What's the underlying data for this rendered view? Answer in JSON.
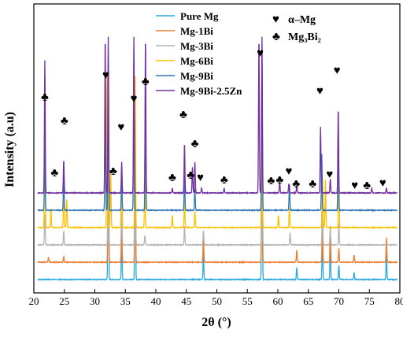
{
  "chart_data": {
    "type": "line",
    "xlabel": "2θ (°)",
    "ylabel": "Intensity (a.u)",
    "xlim": [
      20,
      80
    ],
    "xticks": [
      20,
      25,
      30,
      35,
      40,
      45,
      50,
      55,
      60,
      65,
      70,
      75,
      80
    ],
    "yticks_shown": false,
    "grid": false,
    "legend_position": "top-center",
    "series": [
      {
        "name": "Pure Mg",
        "color": "#29a9e0",
        "offset": 0,
        "peaks": [
          [
            32.2,
            330
          ],
          [
            34.4,
            90
          ],
          [
            36.6,
            330
          ],
          [
            47.8,
            55
          ],
          [
            57.4,
            330
          ],
          [
            63.1,
            25
          ],
          [
            67.3,
            95
          ],
          [
            68.6,
            70
          ],
          [
            70.0,
            30
          ],
          [
            72.5,
            15
          ],
          [
            77.8,
            55
          ]
        ]
      },
      {
        "name": "Mg-1Bi",
        "color": "#ed7d31",
        "offset": 1,
        "peaks": [
          [
            22.4,
            10
          ],
          [
            24.9,
            12
          ],
          [
            32.2,
            330
          ],
          [
            34.4,
            80
          ],
          [
            36.6,
            330
          ],
          [
            47.8,
            55
          ],
          [
            57.4,
            330
          ],
          [
            63.1,
            25
          ],
          [
            67.3,
            90
          ],
          [
            68.6,
            65
          ],
          [
            70.0,
            30
          ],
          [
            72.5,
            15
          ],
          [
            77.8,
            52
          ]
        ]
      },
      {
        "name": "Mg-3Bi",
        "color": "#b4b4b4",
        "offset": 2,
        "peaks": [
          [
            21.8,
            65
          ],
          [
            24.9,
            30
          ],
          [
            32.2,
            330
          ],
          [
            34.4,
            85
          ],
          [
            36.6,
            330
          ],
          [
            38.2,
            20
          ],
          [
            44.7,
            40
          ],
          [
            47.8,
            30
          ],
          [
            57.4,
            330
          ],
          [
            62.0,
            25
          ],
          [
            67.3,
            80
          ],
          [
            68.6,
            40
          ],
          [
            70.0,
            45
          ]
        ]
      },
      {
        "name": "Mg-6Bi",
        "color": "#ffc000",
        "offset": 3,
        "peaks": [
          [
            21.8,
            200
          ],
          [
            22.8,
            40
          ],
          [
            24.9,
            75
          ],
          [
            25.4,
            60
          ],
          [
            32.0,
            320
          ],
          [
            32.6,
            120
          ],
          [
            34.4,
            130
          ],
          [
            36.6,
            320
          ],
          [
            38.2,
            110
          ],
          [
            42.7,
            25
          ],
          [
            44.7,
            60
          ],
          [
            46.4,
            35
          ],
          [
            57.4,
            330
          ],
          [
            60.1,
            25
          ],
          [
            61.9,
            40
          ],
          [
            67.3,
            120
          ],
          [
            67.8,
            100
          ],
          [
            70.0,
            100
          ]
        ]
      },
      {
        "name": "Mg-9Bi",
        "color": "#2e75b6",
        "offset": 4,
        "peaks": [
          [
            21.8,
            150
          ],
          [
            24.9,
            70
          ],
          [
            31.7,
            230
          ],
          [
            32.2,
            300
          ],
          [
            34.4,
            70
          ],
          [
            36.4,
            300
          ],
          [
            38.3,
            200
          ],
          [
            44.7,
            75
          ],
          [
            46.4,
            45
          ],
          [
            57.4,
            320
          ],
          [
            61.9,
            55
          ],
          [
            67.2,
            120
          ],
          [
            69.9,
            160
          ]
        ]
      },
      {
        "name": "Mg-9Bi-2.5Zn",
        "color": "#7030a0",
        "offset": 5,
        "peaks": [
          [
            21.8,
            280
          ],
          [
            24.9,
            70
          ],
          [
            31.7,
            330
          ],
          [
            32.2,
            330
          ],
          [
            34.4,
            65
          ],
          [
            36.4,
            330
          ],
          [
            38.3,
            330
          ],
          [
            42.7,
            10
          ],
          [
            44.7,
            105
          ],
          [
            46.0,
            55
          ],
          [
            46.4,
            65
          ],
          [
            47.5,
            10
          ],
          [
            51.2,
            10
          ],
          [
            56.9,
            330
          ],
          [
            57.4,
            330
          ],
          [
            60.3,
            25
          ],
          [
            61.8,
            20
          ],
          [
            63.1,
            15
          ],
          [
            67.0,
            140
          ],
          [
            68.6,
            30
          ],
          [
            69.9,
            180
          ],
          [
            75.4,
            10
          ],
          [
            77.8,
            10
          ]
        ]
      }
    ],
    "legend_phases": [
      {
        "symbol": "♥",
        "name": "α–Mg"
      },
      {
        "symbol": "♣",
        "name": "Mg₃Bi₂"
      }
    ],
    "peak_markers": [
      {
        "symbol": "♣",
        "x": 21.8,
        "level": 128
      },
      {
        "symbol": "♣",
        "x": 23.4,
        "level": 224
      },
      {
        "symbol": "♣",
        "x": 25.0,
        "level": 158
      },
      {
        "symbol": "♥",
        "x": 31.8,
        "level": 100
      },
      {
        "symbol": "♣",
        "x": 33.0,
        "level": 222
      },
      {
        "symbol": "♥",
        "x": 34.3,
        "level": 166
      },
      {
        "symbol": "♥",
        "x": 36.4,
        "level": 130
      },
      {
        "symbol": "♣",
        "x": 38.3,
        "level": 108
      },
      {
        "symbol": "♣",
        "x": 42.7,
        "level": 230
      },
      {
        "symbol": "♣",
        "x": 44.5,
        "level": 150
      },
      {
        "symbol": "♣",
        "x": 45.7,
        "level": 227
      },
      {
        "symbol": "♣",
        "x": 46.4,
        "level": 187
      },
      {
        "symbol": "♥",
        "x": 47.3,
        "level": 230
      },
      {
        "symbol": "♣",
        "x": 51.2,
        "level": 233
      },
      {
        "symbol": "♥",
        "x": 57.1,
        "level": 72
      },
      {
        "symbol": "♣",
        "x": 58.9,
        "level": 234
      },
      {
        "symbol": "♣",
        "x": 60.3,
        "level": 233
      },
      {
        "symbol": "♥",
        "x": 61.8,
        "level": 222
      },
      {
        "symbol": "♣",
        "x": 63.0,
        "level": 238
      },
      {
        "symbol": "♣",
        "x": 65.7,
        "level": 238
      },
      {
        "symbol": "♥",
        "x": 66.9,
        "level": 120
      },
      {
        "symbol": "♥",
        "x": 68.5,
        "level": 226
      },
      {
        "symbol": "♥",
        "x": 69.7,
        "level": 94
      },
      {
        "symbol": "♥",
        "x": 72.6,
        "level": 240
      },
      {
        "symbol": "♣",
        "x": 74.6,
        "level": 240
      },
      {
        "symbol": "♥",
        "x": 77.2,
        "level": 237
      }
    ]
  }
}
